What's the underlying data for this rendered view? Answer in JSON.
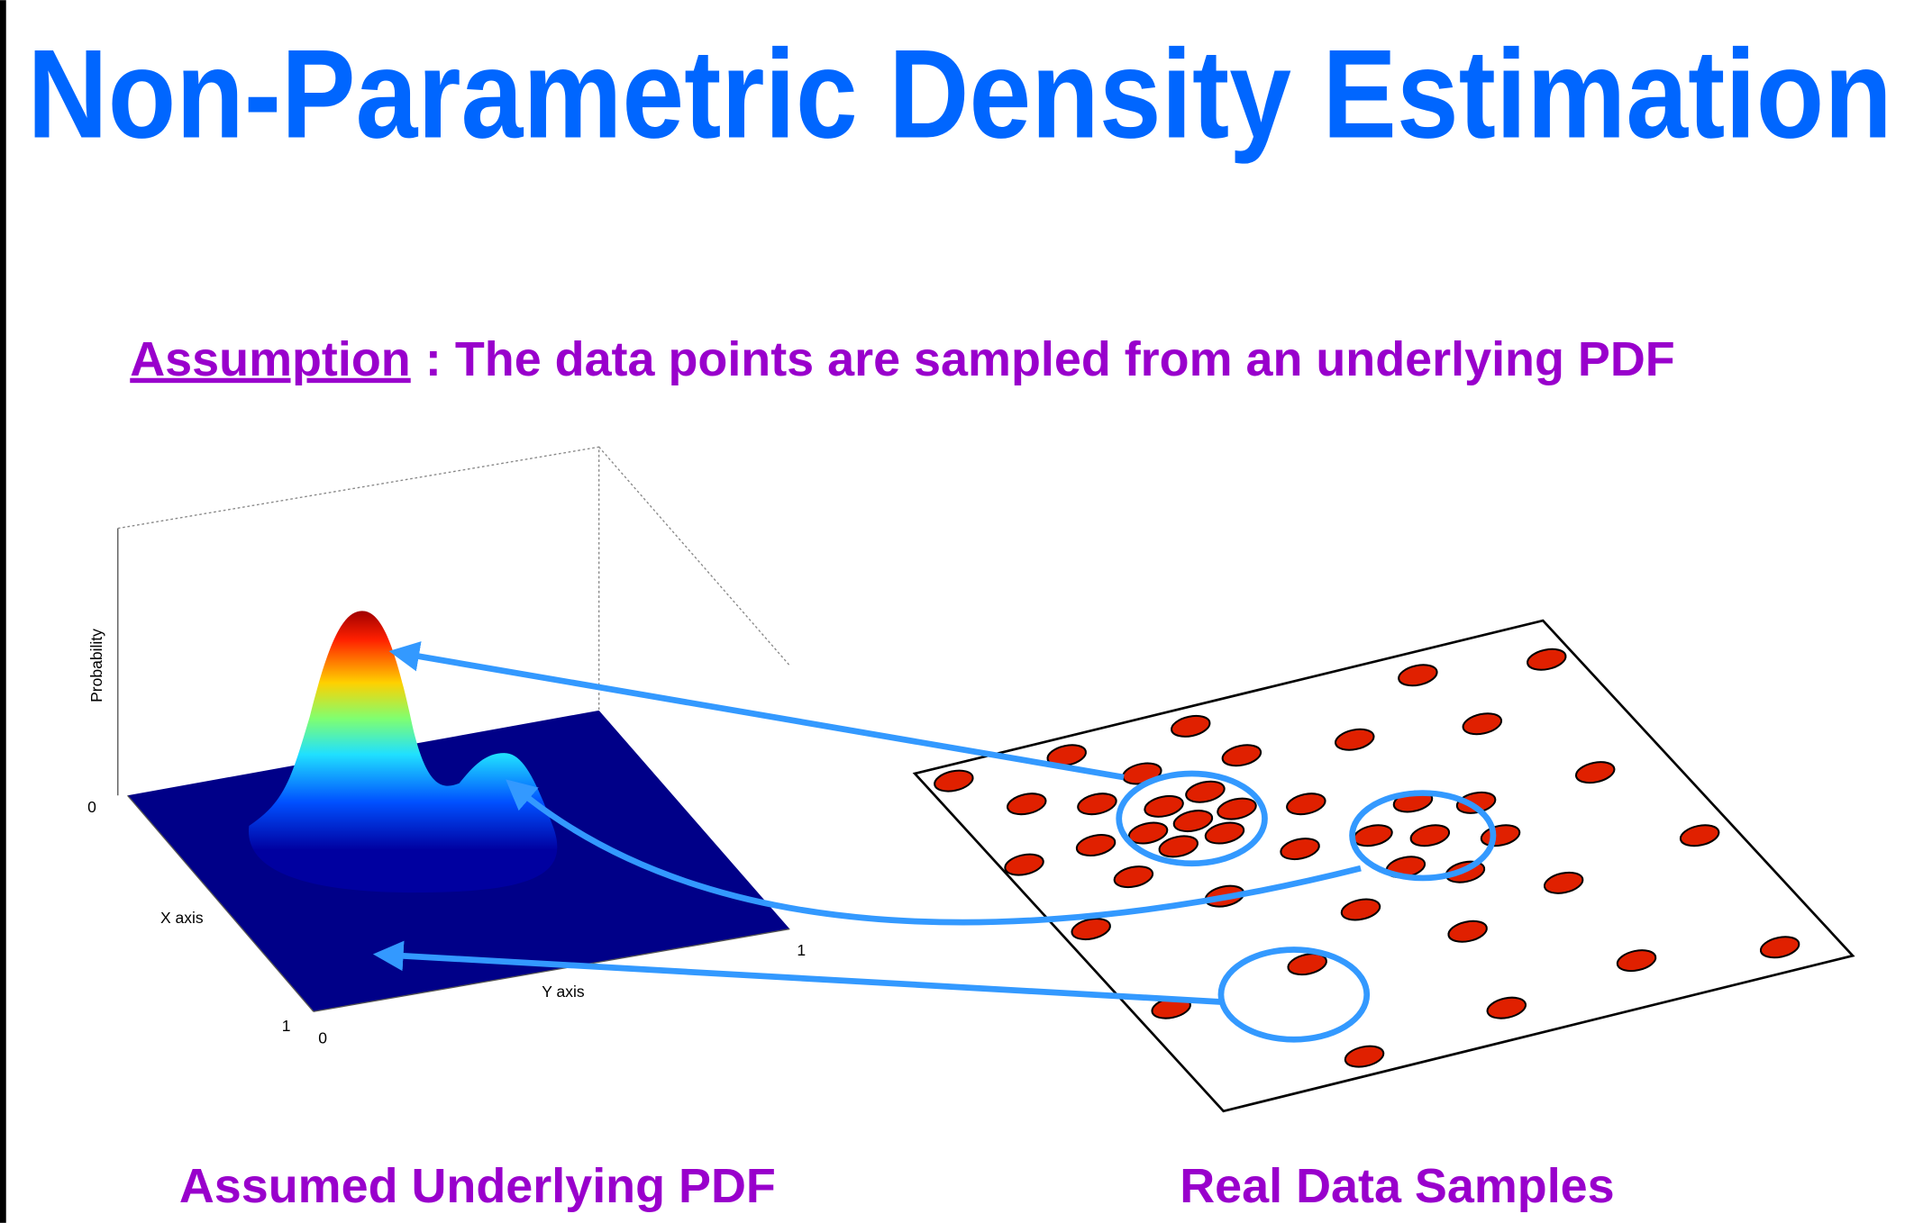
{
  "header": {
    "title": "Non-Parametric Density Estimation"
  },
  "assumption": {
    "label": "Assumption",
    "text": ": The data points are sampled from an underlying PDF"
  },
  "pdf_plot": {
    "z_label": "Probability",
    "x_label": "X axis",
    "y_label": "Y axis",
    "z_tick": "0",
    "y_tick_end": "1",
    "x_tick_end": "1",
    "origin_tick": "0"
  },
  "captions": {
    "left": "Assumed Underlying PDF",
    "right": "Real Data Samples"
  }
}
